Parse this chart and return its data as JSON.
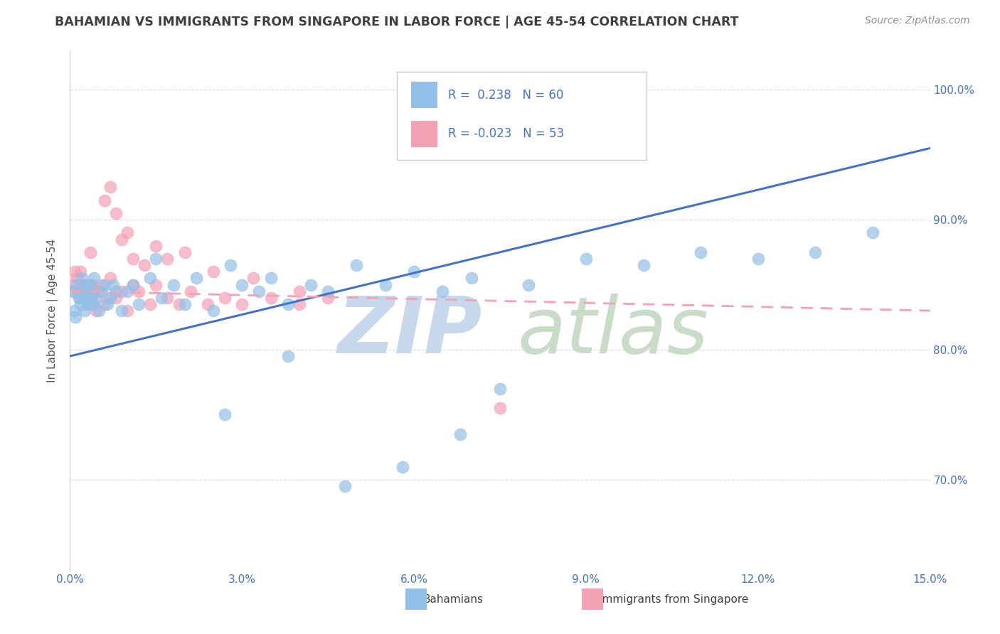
{
  "title": "BAHAMIAN VS IMMIGRANTS FROM SINGAPORE IN LABOR FORCE | AGE 45-54 CORRELATION CHART",
  "source": "Source: ZipAtlas.com",
  "xlabel_blue": "Bahamians",
  "xlabel_pink": "Immigrants from Singapore",
  "ylabel": "In Labor Force | Age 45-54",
  "R_blue": 0.238,
  "N_blue": 60,
  "R_pink": -0.023,
  "N_pink": 53,
  "xlim": [
    0.0,
    15.0
  ],
  "ylim": [
    63.0,
    103.0
  ],
  "yticks": [
    70.0,
    80.0,
    90.0,
    100.0
  ],
  "ytick_labels": [
    "70.0%",
    "80.0%",
    "90.0%",
    "100.0%"
  ],
  "xticks": [
    0.0,
    3.0,
    6.0,
    9.0,
    12.0,
    15.0
  ],
  "xtick_labels": [
    "0.0%",
    "3.0%",
    "6.0%",
    "9.0%",
    "12.0%",
    "15.0%"
  ],
  "blue_color": "#92C0E8",
  "pink_color": "#F4A0B5",
  "blue_line_color": "#4472C4",
  "pink_line_color": "#F4A0B5",
  "title_color": "#404040",
  "source_color": "#909090",
  "label_color": "#4472C4",
  "grid_color": "#DDDDDD",
  "watermark_zip_color": "#C8D8EC",
  "watermark_atlas_color": "#C8DCC8",
  "blue_trend_x0": 0.0,
  "blue_trend_y0": 79.5,
  "blue_trend_x1": 15.0,
  "blue_trend_y1": 95.5,
  "pink_trend_x0": 0.0,
  "pink_trend_y0": 84.5,
  "pink_trend_x1": 15.0,
  "pink_trend_y1": 83.0,
  "blue_x": [
    0.05,
    0.08,
    0.1,
    0.12,
    0.15,
    0.18,
    0.2,
    0.22,
    0.25,
    0.28,
    0.3,
    0.32,
    0.35,
    0.38,
    0.4,
    0.42,
    0.45,
    0.5,
    0.55,
    0.6,
    0.65,
    0.7,
    0.75,
    0.8,
    0.9,
    1.0,
    1.1,
    1.2,
    1.4,
    1.6,
    1.8,
    2.0,
    2.2,
    2.5,
    2.8,
    3.0,
    3.3,
    3.5,
    3.8,
    4.2,
    4.5,
    5.0,
    5.5,
    6.0,
    6.5,
    7.0,
    8.0,
    9.0,
    10.0,
    11.0,
    12.0,
    13.0,
    14.0,
    2.7,
    4.8,
    5.8,
    6.8,
    1.5,
    3.8,
    7.5
  ],
  "blue_y": [
    84.5,
    83.0,
    82.5,
    85.0,
    84.0,
    83.5,
    85.5,
    84.0,
    83.0,
    85.0,
    84.5,
    83.5,
    85.0,
    84.0,
    83.5,
    85.5,
    84.0,
    83.0,
    84.5,
    85.0,
    83.5,
    84.0,
    85.0,
    84.5,
    83.0,
    84.5,
    85.0,
    83.5,
    85.5,
    84.0,
    85.0,
    83.5,
    85.5,
    83.0,
    86.5,
    85.0,
    84.5,
    85.5,
    83.5,
    85.0,
    84.5,
    86.5,
    85.0,
    86.0,
    84.5,
    85.5,
    85.0,
    87.0,
    86.5,
    87.5,
    87.0,
    87.5,
    89.0,
    75.0,
    69.5,
    71.0,
    73.5,
    87.0,
    79.5,
    77.0
  ],
  "pink_x": [
    0.05,
    0.08,
    0.1,
    0.12,
    0.15,
    0.18,
    0.2,
    0.22,
    0.25,
    0.28,
    0.3,
    0.32,
    0.35,
    0.38,
    0.4,
    0.42,
    0.45,
    0.5,
    0.55,
    0.6,
    0.65,
    0.7,
    0.8,
    0.9,
    1.0,
    1.1,
    1.2,
    1.4,
    1.5,
    1.7,
    1.9,
    2.1,
    2.4,
    2.7,
    3.0,
    3.5,
    4.0,
    4.5,
    0.6,
    0.7,
    0.8,
    0.9,
    1.0,
    1.1,
    1.3,
    1.5,
    1.7,
    2.0,
    2.5,
    3.2,
    4.0,
    7.5,
    0.35
  ],
  "pink_y": [
    85.0,
    86.0,
    84.5,
    85.5,
    84.0,
    86.0,
    85.0,
    84.5,
    85.0,
    84.5,
    83.5,
    85.0,
    84.0,
    83.5,
    85.0,
    84.5,
    83.0,
    84.5,
    85.0,
    83.5,
    84.0,
    85.5,
    84.0,
    84.5,
    83.0,
    85.0,
    84.5,
    83.5,
    85.0,
    84.0,
    83.5,
    84.5,
    83.5,
    84.0,
    83.5,
    84.0,
    83.5,
    84.0,
    91.5,
    92.5,
    90.5,
    88.5,
    89.0,
    87.0,
    86.5,
    88.0,
    87.0,
    87.5,
    86.0,
    85.5,
    84.5,
    75.5,
    87.5
  ]
}
